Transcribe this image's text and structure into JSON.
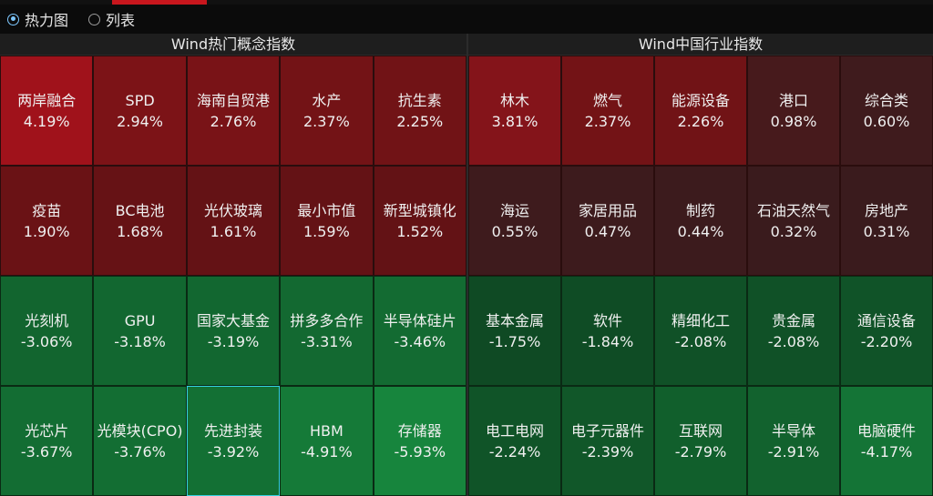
{
  "toolbar": {
    "options": [
      {
        "label": "热力图",
        "selected": true
      },
      {
        "label": "列表",
        "selected": false
      }
    ]
  },
  "panels": [
    {
      "title": "Wind热门概念指数",
      "cells": [
        {
          "name": "两岸融合",
          "pct": "4.19%",
          "color": "#a0121b"
        },
        {
          "name": "SPD",
          "pct": "2.94%",
          "color": "#7c1317"
        },
        {
          "name": "海南自贸港",
          "pct": "2.76%",
          "color": "#791317"
        },
        {
          "name": "水产",
          "pct": "2.37%",
          "color": "#731316"
        },
        {
          "name": "抗生素",
          "pct": "2.25%",
          "color": "#711316"
        },
        {
          "name": "疫苗",
          "pct": "1.90%",
          "color": "#6a1215"
        },
        {
          "name": "BC电池",
          "pct": "1.68%",
          "color": "#661215"
        },
        {
          "name": "光伏玻璃",
          "pct": "1.61%",
          "color": "#641215"
        },
        {
          "name": "最小市值",
          "pct": "1.59%",
          "color": "#641215"
        },
        {
          "name": "新型城镇化",
          "pct": "1.52%",
          "color": "#631215"
        },
        {
          "name": "光刻机",
          "pct": "-3.06%",
          "color": "#12652f"
        },
        {
          "name": "GPU",
          "pct": "-3.18%",
          "color": "#126730"
        },
        {
          "name": "国家大基金",
          "pct": "-3.19%",
          "color": "#126730"
        },
        {
          "name": "拼多多合作",
          "pct": "-3.31%",
          "color": "#136931"
        },
        {
          "name": "半导体硅片",
          "pct": "-3.46%",
          "color": "#136b32"
        },
        {
          "name": "光芯片",
          "pct": "-3.67%",
          "color": "#136d33"
        },
        {
          "name": "光模块(CPO)",
          "pct": "-3.76%",
          "color": "#136e33"
        },
        {
          "name": "先进封装",
          "pct": "-3.92%",
          "color": "#137034",
          "selected": true
        },
        {
          "name": "HBM",
          "pct": "-4.91%",
          "color": "#157a38"
        },
        {
          "name": "存储器",
          "pct": "-5.93%",
          "color": "#17853d"
        }
      ]
    },
    {
      "title": "Wind中国行业指数",
      "cells": [
        {
          "name": "林木",
          "pct": "3.81%",
          "color": "#84141a"
        },
        {
          "name": "燃气",
          "pct": "2.37%",
          "color": "#731316"
        },
        {
          "name": "能源设备",
          "pct": "2.26%",
          "color": "#711316"
        },
        {
          "name": "港口",
          "pct": "0.98%",
          "color": "#471a1c"
        },
        {
          "name": "综合类",
          "pct": "0.60%",
          "color": "#3f1b1d"
        },
        {
          "name": "海运",
          "pct": "0.55%",
          "color": "#3e1b1d"
        },
        {
          "name": "家居用品",
          "pct": "0.47%",
          "color": "#3d1b1d"
        },
        {
          "name": "制药",
          "pct": "0.44%",
          "color": "#3c1b1d"
        },
        {
          "name": "石油天然气",
          "pct": "0.32%",
          "color": "#3a1b1d"
        },
        {
          "name": "房地产",
          "pct": "0.31%",
          "color": "#3a1b1d"
        },
        {
          "name": "基本金属",
          "pct": "-1.75%",
          "color": "#0f4a24"
        },
        {
          "name": "软件",
          "pct": "-1.84%",
          "color": "#0f4c25"
        },
        {
          "name": "精细化工",
          "pct": "-2.08%",
          "color": "#105127"
        },
        {
          "name": "贵金属",
          "pct": "-2.08%",
          "color": "#105127"
        },
        {
          "name": "通信设备",
          "pct": "-2.20%",
          "color": "#105328"
        },
        {
          "name": "电工电网",
          "pct": "-2.24%",
          "color": "#105428"
        },
        {
          "name": "电子元器件",
          "pct": "-2.39%",
          "color": "#115729"
        },
        {
          "name": "互联网",
          "pct": "-2.79%",
          "color": "#115f2c"
        },
        {
          "name": "半导体",
          "pct": "-2.91%",
          "color": "#12622e"
        },
        {
          "name": "电脑硬件",
          "pct": "-4.17%",
          "color": "#147436"
        }
      ]
    }
  ]
}
